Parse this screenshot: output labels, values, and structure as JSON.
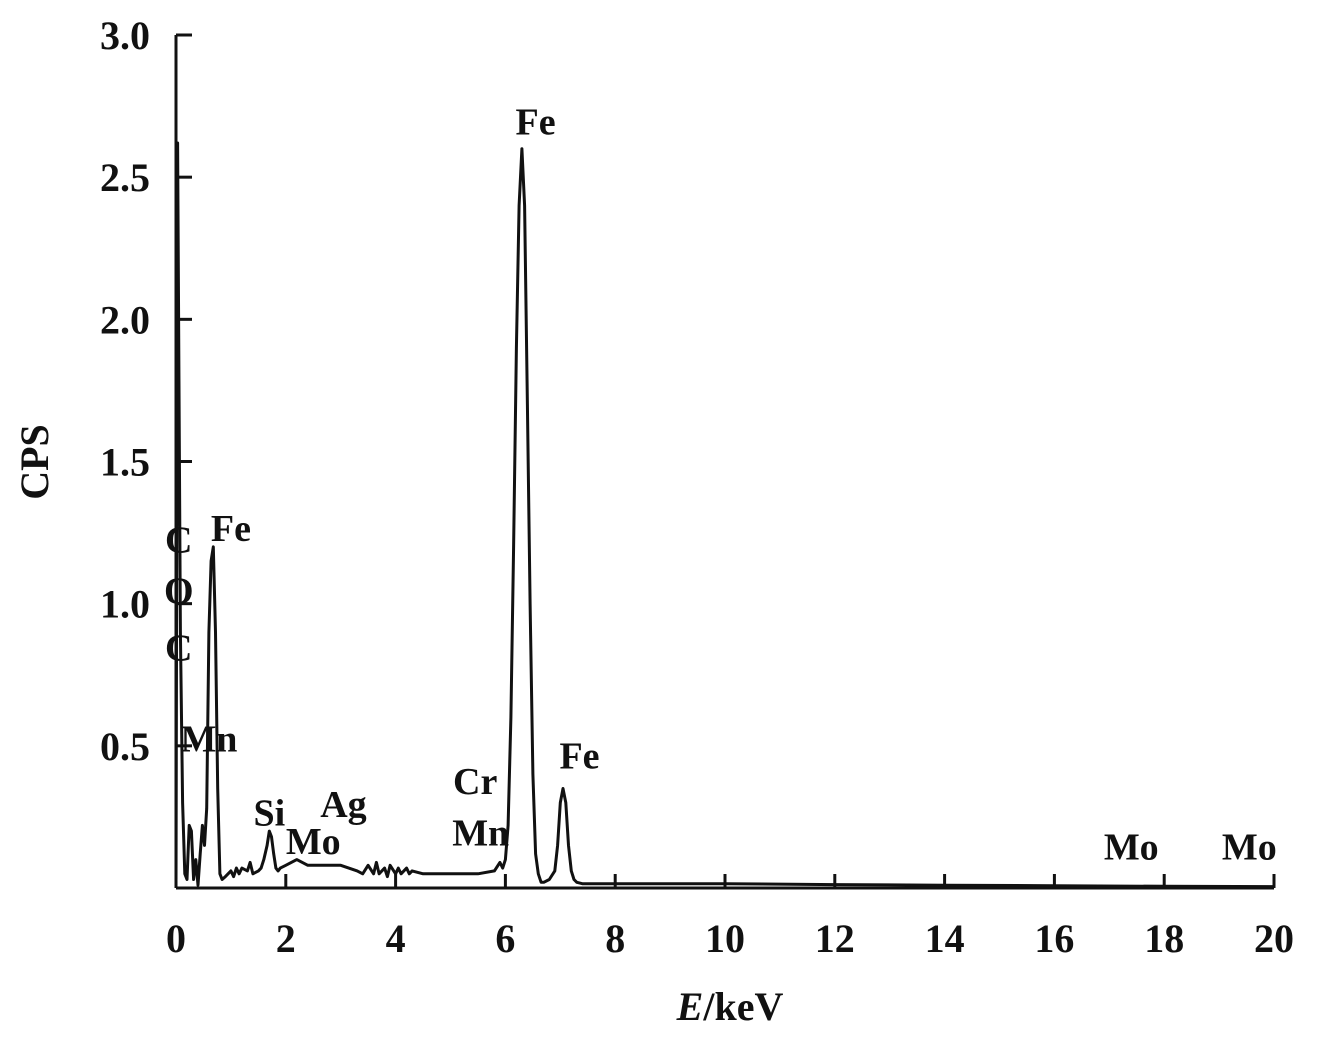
{
  "chart_data": {
    "type": "line",
    "title": "",
    "xlabel_italic": "E",
    "xlabel_rest": "/keV",
    "ylabel": "CPS",
    "xlim": [
      0,
      20
    ],
    "ylim": [
      0,
      3.0
    ],
    "x_ticks": [
      0,
      2,
      4,
      6,
      8,
      10,
      12,
      14,
      16,
      18,
      20
    ],
    "x_tick_labels": [
      "0",
      "2",
      "4",
      "6",
      "8",
      "10",
      "12",
      "14",
      "16",
      "18",
      "20"
    ],
    "y_ticks": [
      0.5,
      1.0,
      1.5,
      2.0,
      2.5,
      3.0
    ],
    "y_tick_labels": [
      "0.5",
      "1.0",
      "1.5",
      "2.0",
      "2.5",
      "3.0"
    ],
    "grid": false,
    "line_color": "#111111",
    "series": [
      {
        "x": [
          0.0,
          0.03,
          0.08,
          0.12,
          0.16,
          0.2,
          0.24,
          0.28,
          0.32,
          0.36,
          0.4,
          0.44,
          0.48,
          0.52,
          0.56,
          0.6,
          0.64,
          0.68,
          0.72,
          0.76,
          0.8,
          0.84,
          0.9,
          1.0,
          1.05,
          1.1,
          1.15,
          1.2,
          1.3,
          1.35,
          1.4,
          1.5,
          1.55,
          1.6,
          1.66,
          1.7,
          1.74,
          1.78,
          1.82,
          1.86,
          1.9,
          2.0,
          2.1,
          2.2,
          2.3,
          2.4,
          2.6,
          3.0,
          3.3,
          3.4,
          3.5,
          3.6,
          3.65,
          3.7,
          3.8,
          3.85,
          3.9,
          4.0,
          4.05,
          4.1,
          4.2,
          4.25,
          4.3,
          4.5,
          5.0,
          5.5,
          5.8,
          5.9,
          5.95,
          6.0,
          6.05,
          6.1,
          6.15,
          6.2,
          6.25,
          6.3,
          6.35,
          6.4,
          6.45,
          6.5,
          6.55,
          6.6,
          6.65,
          6.7,
          6.8,
          6.9,
          6.95,
          7.0,
          7.05,
          7.1,
          7.15,
          7.2,
          7.25,
          7.3,
          7.4,
          7.6,
          8.0,
          10.0,
          12.0,
          14.0,
          16.0,
          18.0,
          20.0
        ],
        "y": [
          0.0,
          2.62,
          0.9,
          0.3,
          0.05,
          0.03,
          0.22,
          0.2,
          0.03,
          0.1,
          0.01,
          0.12,
          0.22,
          0.15,
          0.28,
          0.9,
          1.15,
          1.2,
          0.9,
          0.35,
          0.05,
          0.03,
          0.04,
          0.06,
          0.04,
          0.07,
          0.05,
          0.07,
          0.06,
          0.09,
          0.05,
          0.06,
          0.07,
          0.1,
          0.15,
          0.2,
          0.18,
          0.12,
          0.07,
          0.06,
          0.07,
          0.08,
          0.09,
          0.1,
          0.09,
          0.08,
          0.08,
          0.08,
          0.06,
          0.05,
          0.08,
          0.05,
          0.09,
          0.05,
          0.07,
          0.04,
          0.08,
          0.05,
          0.07,
          0.05,
          0.07,
          0.05,
          0.06,
          0.05,
          0.05,
          0.05,
          0.06,
          0.09,
          0.07,
          0.1,
          0.22,
          0.6,
          1.2,
          1.9,
          2.4,
          2.6,
          2.4,
          1.7,
          1.0,
          0.4,
          0.12,
          0.05,
          0.02,
          0.02,
          0.03,
          0.06,
          0.15,
          0.3,
          0.35,
          0.3,
          0.15,
          0.06,
          0.03,
          0.02,
          0.015,
          0.015,
          0.015,
          0.015,
          0.012,
          0.01,
          0.008,
          0.006,
          0.005
        ]
      }
    ],
    "peak_labels": [
      {
        "text": "C",
        "x": 0.05,
        "y": 1.18
      },
      {
        "text": "Fe",
        "x": 1.0,
        "y": 1.22
      },
      {
        "text": "O",
        "x": 0.05,
        "y": 1.0
      },
      {
        "text": "C",
        "x": 0.05,
        "y": 0.8
      },
      {
        "text": "Mn",
        "x": 0.6,
        "y": 0.48
      },
      {
        "text": "Si",
        "x": 1.7,
        "y": 0.22
      },
      {
        "text": "Ag",
        "x": 3.05,
        "y": 0.25
      },
      {
        "text": "Mo",
        "x": 2.5,
        "y": 0.12
      },
      {
        "text": "Cr",
        "x": 5.45,
        "y": 0.33
      },
      {
        "text": "Mn",
        "x": 5.55,
        "y": 0.15
      },
      {
        "text": "Fe",
        "x": 6.55,
        "y": 2.65
      },
      {
        "text": "Fe",
        "x": 7.35,
        "y": 0.42
      },
      {
        "text": "Mo",
        "x": 17.4,
        "y": 0.1
      },
      {
        "text": "Mo",
        "x": 19.55,
        "y": 0.1
      }
    ]
  }
}
